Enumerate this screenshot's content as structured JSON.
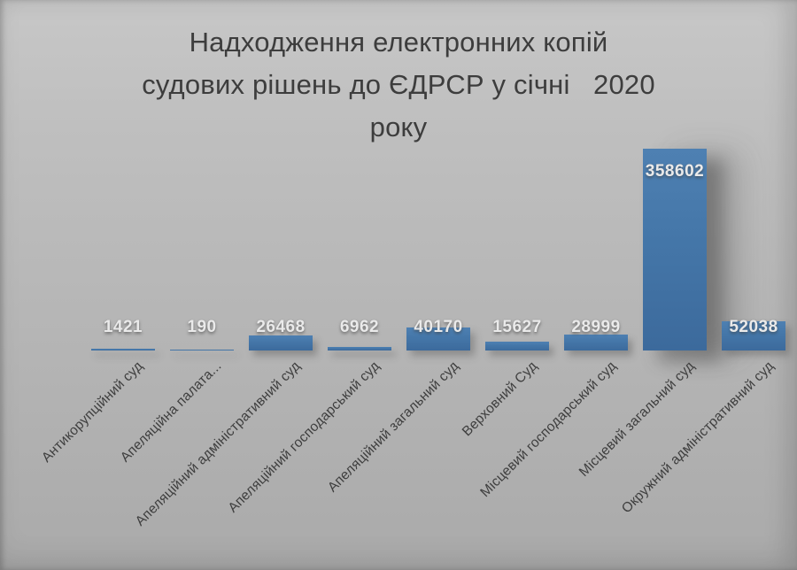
{
  "title": {
    "lines": [
      "Надходження електронних копій",
      "судових рішень до ЄДРСР у січні   2020",
      "року"
    ]
  },
  "chart_data": {
    "type": "bar",
    "title": "Надходження електронних копій судових рішень до ЄДРСР у січні 2020 року",
    "categories": [
      "Антикорупційний суд",
      "Апеляційна палата...",
      "Апеляційний адміністративний суд",
      "Апеляційний господарський суд",
      "Апеляційний загальний суд",
      "Верховний Суд",
      "Місцевий господарський суд",
      "Місцевий загальний суд",
      "Окружний адміністративний суд"
    ],
    "values": [
      1421,
      190,
      26468,
      6962,
      40170,
      15627,
      28999,
      358602,
      52038
    ],
    "data_labels": [
      "1421",
      "190",
      "26468",
      "6962",
      "40170",
      "15627",
      "28999",
      "358602",
      "52038"
    ],
    "xlabel": "",
    "ylabel": "",
    "grid": false,
    "legend_position": "none",
    "axis_lines_visible": false,
    "category_label_rotation_deg": 45,
    "max_value_label_position": "inside-top",
    "other_value_label_position": "above-bar"
  },
  "style": {
    "background_top": "#c7c7c7",
    "background_bottom": "#aaaaaa",
    "bar_fill": "#4577a9",
    "bar_fill_light": "#4e80b2",
    "bar_fill_dark": "#3c6a9c",
    "title_text": "#3d3d3d",
    "category_text": "#3e3e3e",
    "value_label_text": "#eaeaea"
  }
}
